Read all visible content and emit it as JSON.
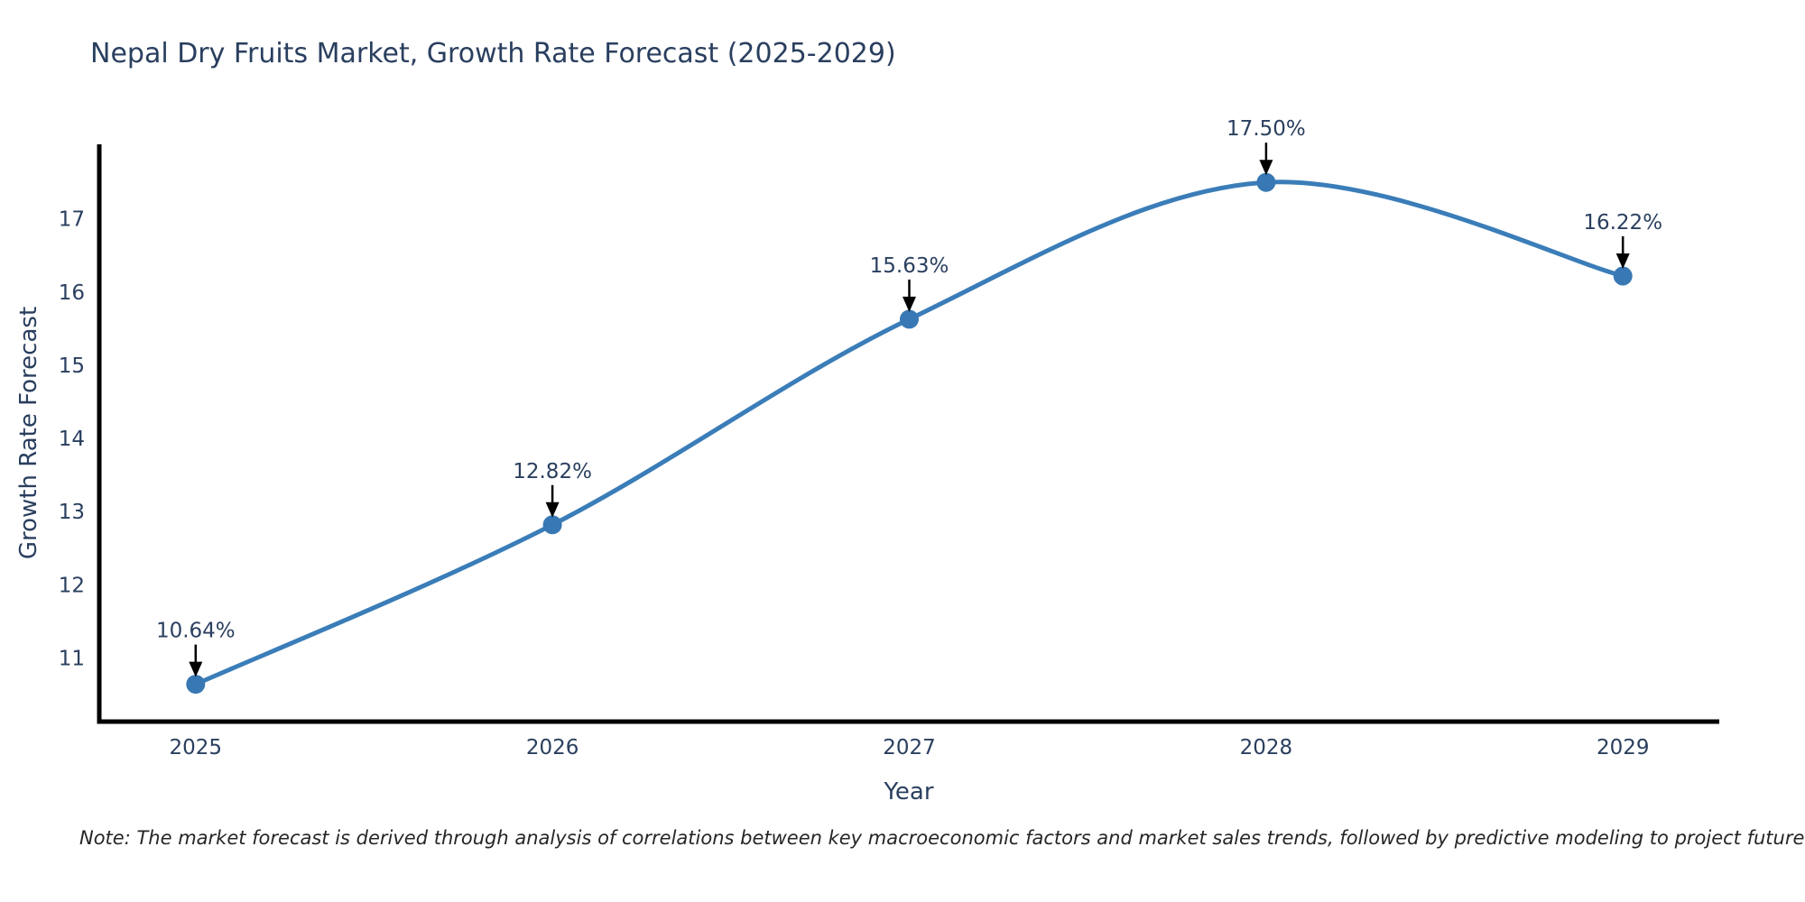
{
  "page": {
    "note": "Note: The market forecast is derived through analysis of correlations between key macroeconomic factors and market sales trends, followed by predictive modeling to project future sales"
  },
  "chart_data": {
    "type": "line",
    "title": "Nepal Dry Fruits Market, Growth Rate Forecast (2025-2029)",
    "xlabel": "Year",
    "ylabel": "Growth Rate Forecast",
    "x": [
      2025,
      2026,
      2027,
      2028,
      2029
    ],
    "y": [
      10.64,
      12.82,
      15.63,
      17.5,
      16.22
    ],
    "point_labels": [
      "10.64%",
      "12.82%",
      "15.63%",
      "17.50%",
      "16.22%"
    ],
    "xticks": [
      "2025",
      "2026",
      "2027",
      "2028",
      "2029"
    ],
    "yticks": [
      "11",
      "12",
      "13",
      "14",
      "15",
      "16",
      "17"
    ],
    "ytick_values": [
      11,
      12,
      13,
      14,
      15,
      16,
      17
    ],
    "xlim": [
      2024.73,
      2029.27
    ],
    "ylim": [
      10.13,
      18.02
    ],
    "line_shape": "spline",
    "grid": false,
    "legend": false,
    "colors": {
      "line": "#3a7db8",
      "marker": "#3878b4",
      "axis": "#000000",
      "text": "#2a3f5f",
      "annotation_arrow": "#000000"
    }
  }
}
